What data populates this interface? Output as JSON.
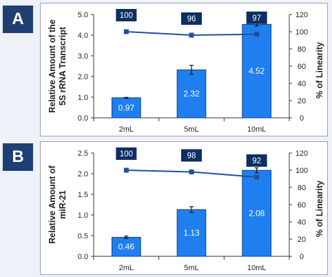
{
  "chart_data": [
    {
      "type": "bar",
      "panel": "A",
      "categories": [
        "2mL",
        "5mL",
        "10mL"
      ],
      "series": [
        {
          "values": [
            0.97,
            2.32,
            4.52
          ],
          "error": [
            0.02,
            0.22,
            0.08
          ]
        },
        {
          "values": [
            100,
            96,
            97
          ],
          "axis": "right",
          "style": "line"
        }
      ],
      "ylabel_lines": [
        "Relative Amount of the",
        "5S rRNA Transcript"
      ],
      "y2label": "% of Linearity",
      "ylim": [
        0,
        5.0
      ],
      "yticks": [
        "0.0",
        "1.0",
        "2.0",
        "3.0",
        "4.0",
        "5.0"
      ],
      "y2lim": [
        0,
        120
      ],
      "y2ticks": [
        "0",
        "20",
        "40",
        "60",
        "80",
        "100",
        "120"
      ],
      "bar_color": "#1f7ff0",
      "line_color": "#1e4fa0",
      "callout_color": "#0d2f63"
    },
    {
      "type": "bar",
      "panel": "B",
      "categories": [
        "2mL",
        "5mL",
        "10mL"
      ],
      "series": [
        {
          "values": [
            0.46,
            1.13,
            2.08
          ],
          "error": [
            0.03,
            0.07,
            0.06
          ]
        },
        {
          "values": [
            100,
            98,
            92
          ],
          "axis": "right",
          "style": "line"
        }
      ],
      "ylabel_lines": [
        "Relative Amount of",
        "miR-21"
      ],
      "y2label": "% of Linearity",
      "ylim": [
        0,
        2.5
      ],
      "yticks": [
        "0.0",
        "0.5",
        "1.0",
        "1.5",
        "2.0",
        "2.5"
      ],
      "y2lim": [
        0,
        120
      ],
      "y2ticks": [
        "0",
        "20",
        "40",
        "60",
        "80",
        "100",
        "120"
      ],
      "bar_color": "#1f7ff0",
      "line_color": "#1e4fa0",
      "callout_color": "#0d2f63"
    }
  ]
}
